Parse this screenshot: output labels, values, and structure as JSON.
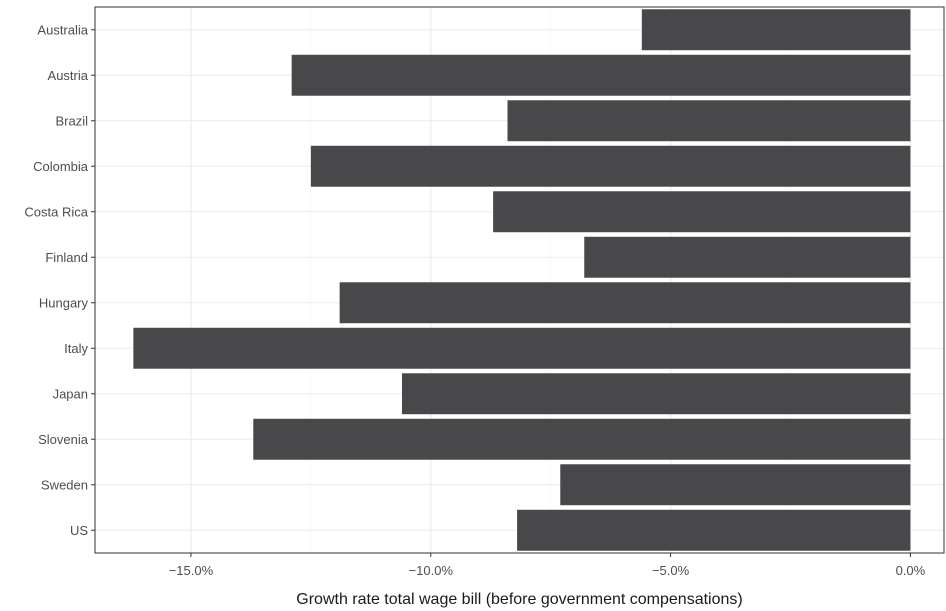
{
  "chart_data": {
    "type": "bar",
    "orientation": "horizontal",
    "categories": [
      "Australia",
      "Austria",
      "Brazil",
      "Colombia",
      "Costa Rica",
      "Finland",
      "Hungary",
      "Italy",
      "Japan",
      "Slovenia",
      "Sweden",
      "US"
    ],
    "values": [
      -5.6,
      -12.9,
      -8.4,
      -12.5,
      -8.7,
      -6.8,
      -11.9,
      -16.2,
      -10.6,
      -13.7,
      -7.3,
      -8.2
    ],
    "xlabel": "Growth rate total wage bill (before government compensations)",
    "ylabel": "",
    "xlim": [
      -17,
      0.7
    ],
    "xticks": [
      -15,
      -10,
      -5,
      0
    ],
    "xtick_labels": [
      "−15.0%",
      "−10.0%",
      "−5.0%",
      "0.0%"
    ],
    "bar_color": "#48484a",
    "grid": true,
    "legend": "none"
  }
}
